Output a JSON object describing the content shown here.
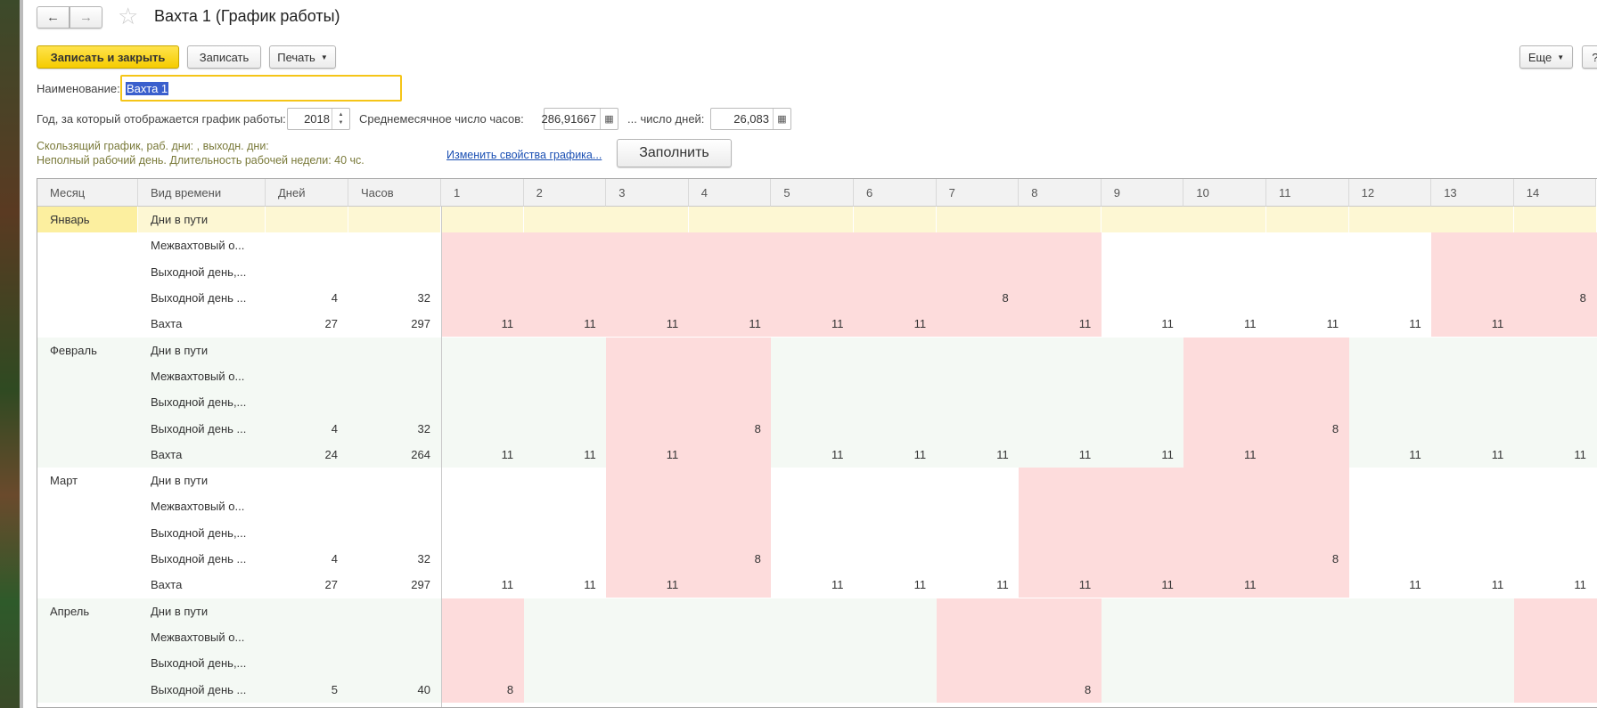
{
  "window": {
    "title": "Вахта 1 (График работы)"
  },
  "nav": {
    "back_icon": "arrow-left",
    "forward_icon": "arrow-right",
    "favorite_icon": "star"
  },
  "toolbar": {
    "save_close": "Записать и закрыть",
    "save": "Записать",
    "print": "Печать",
    "more": "Еще",
    "help": "?"
  },
  "form": {
    "name_label": "Наименование:",
    "name_value": "Вахта 1",
    "year_label": "Год, за который отображается график работы:",
    "year_value": "2018",
    "avg_hours_label": "Среднемесячное число часов:",
    "avg_hours_value": "286,91667",
    "avg_days_label": "... число дней:",
    "avg_days_value": "26,083",
    "info_line1": "Скользящий график, раб. дни: , выходн. дни:",
    "info_line2": "Неполный рабочий день. Длительность рабочей недели: 40 чс.",
    "change_link": "Изменить свойства графика...",
    "fill_button": "Заполнить"
  },
  "colors": {
    "weekend": "#fddcdc",
    "even_month": "#f4f9f4",
    "selected_row": "#fdf7d3",
    "selected_cell": "#fcef9f",
    "accent": "#f5cc00"
  },
  "table": {
    "headers": [
      "Месяц",
      "Вид времени",
      "Дней",
      "Часов",
      "1",
      "2",
      "3",
      "4",
      "5",
      "6",
      "7",
      "8",
      "9",
      "10",
      "11",
      "12",
      "13",
      "14"
    ],
    "months": [
      {
        "name": "Январь",
        "shade": "white",
        "weekend_days": [
          1,
          2,
          3,
          4,
          5,
          6,
          7,
          8,
          13,
          14
        ],
        "rows": [
          {
            "type": "Дни в пути",
            "days": "",
            "hours": "",
            "values": [
              "",
              "",
              "",
              "",
              "",
              "",
              "",
              "",
              "",
              "",
              "",
              "",
              "",
              ""
            ]
          },
          {
            "type": "Межвахтовый о...",
            "days": "",
            "hours": "",
            "values": [
              "",
              "",
              "",
              "",
              "",
              "",
              "",
              "",
              "",
              "",
              "",
              "",
              "",
              ""
            ]
          },
          {
            "type": "Выходной день,...",
            "days": "",
            "hours": "",
            "values": [
              "",
              "",
              "",
              "",
              "",
              "",
              "",
              "",
              "",
              "",
              "",
              "",
              "",
              ""
            ]
          },
          {
            "type": "Выходной день ...",
            "days": "4",
            "hours": "32",
            "values": [
              "",
              "",
              "",
              "",
              "",
              "",
              "8",
              "",
              "",
              "",
              "",
              "",
              "",
              "8"
            ]
          },
          {
            "type": "Вахта",
            "days": "27",
            "hours": "297",
            "values": [
              "11",
              "11",
              "11",
              "11",
              "11",
              "11",
              "",
              "11",
              "11",
              "11",
              "11",
              "11",
              "11",
              ""
            ]
          }
        ]
      },
      {
        "name": "Февраль",
        "shade": "green",
        "weekend_days": [
          3,
          4,
          10,
          11
        ],
        "rows": [
          {
            "type": "Дни в пути",
            "days": "",
            "hours": "",
            "values": [
              "",
              "",
              "",
              "",
              "",
              "",
              "",
              "",
              "",
              "",
              "",
              "",
              "",
              ""
            ]
          },
          {
            "type": "Межвахтовый о...",
            "days": "",
            "hours": "",
            "values": [
              "",
              "",
              "",
              "",
              "",
              "",
              "",
              "",
              "",
              "",
              "",
              "",
              "",
              ""
            ]
          },
          {
            "type": "Выходной день,...",
            "days": "",
            "hours": "",
            "values": [
              "",
              "",
              "",
              "",
              "",
              "",
              "",
              "",
              "",
              "",
              "",
              "",
              "",
              ""
            ]
          },
          {
            "type": "Выходной день ...",
            "days": "4",
            "hours": "32",
            "values": [
              "",
              "",
              "",
              "8",
              "",
              "",
              "",
              "",
              "",
              "",
              "8",
              "",
              "",
              ""
            ]
          },
          {
            "type": "Вахта",
            "days": "24",
            "hours": "264",
            "values": [
              "11",
              "11",
              "11",
              "",
              "11",
              "11",
              "11",
              "11",
              "11",
              "11",
              "",
              "11",
              "11",
              "11"
            ]
          }
        ]
      },
      {
        "name": "Март",
        "shade": "white",
        "weekend_days": [
          3,
          4,
          8,
          9,
          10,
          11
        ],
        "rows": [
          {
            "type": "Дни в пути",
            "days": "",
            "hours": "",
            "values": [
              "",
              "",
              "",
              "",
              "",
              "",
              "",
              "",
              "",
              "",
              "",
              "",
              "",
              ""
            ]
          },
          {
            "type": "Межвахтовый о...",
            "days": "",
            "hours": "",
            "values": [
              "",
              "",
              "",
              "",
              "",
              "",
              "",
              "",
              "",
              "",
              "",
              "",
              "",
              ""
            ]
          },
          {
            "type": "Выходной день,...",
            "days": "",
            "hours": "",
            "values": [
              "",
              "",
              "",
              "",
              "",
              "",
              "",
              "",
              "",
              "",
              "",
              "",
              "",
              ""
            ]
          },
          {
            "type": "Выходной день ...",
            "days": "4",
            "hours": "32",
            "values": [
              "",
              "",
              "",
              "8",
              "",
              "",
              "",
              "",
              "",
              "",
              "8",
              "",
              "",
              ""
            ]
          },
          {
            "type": "Вахта",
            "days": "27",
            "hours": "297",
            "values": [
              "11",
              "11",
              "11",
              "",
              "11",
              "11",
              "11",
              "11",
              "11",
              "11",
              "",
              "11",
              "11",
              "11"
            ]
          }
        ]
      },
      {
        "name": "Апрель",
        "shade": "green",
        "weekend_days": [
          1,
          7,
          8,
          14
        ],
        "rows": [
          {
            "type": "Дни в пути",
            "days": "",
            "hours": "",
            "values": [
              "",
              "",
              "",
              "",
              "",
              "",
              "",
              "",
              "",
              "",
              "",
              "",
              "",
              ""
            ]
          },
          {
            "type": "Межвахтовый о...",
            "days": "",
            "hours": "",
            "values": [
              "",
              "",
              "",
              "",
              "",
              "",
              "",
              "",
              "",
              "",
              "",
              "",
              "",
              ""
            ]
          },
          {
            "type": "Выходной день,...",
            "days": "",
            "hours": "",
            "values": [
              "",
              "",
              "",
              "",
              "",
              "",
              "",
              "",
              "",
              "",
              "",
              "",
              "",
              ""
            ]
          },
          {
            "type": "Выходной день ...",
            "days": "5",
            "hours": "40",
            "values": [
              "8",
              "",
              "",
              "",
              "",
              "",
              "",
              "8",
              "",
              "",
              "",
              "",
              "",
              ""
            ]
          }
        ]
      }
    ]
  }
}
